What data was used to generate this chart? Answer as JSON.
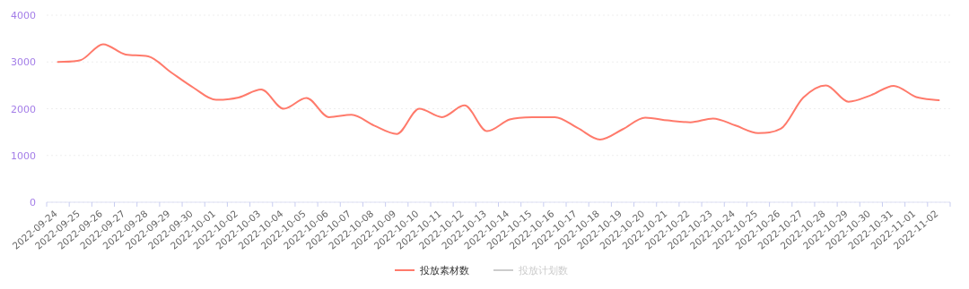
{
  "chart_data": {
    "type": "line",
    "categories": [
      "2022-09-24",
      "2022-09-25",
      "2022-09-26",
      "2022-09-27",
      "2022-09-28",
      "2022-09-29",
      "2022-09-30",
      "2022-10-01",
      "2022-10-02",
      "2022-10-03",
      "2022-10-04",
      "2022-10-05",
      "2022-10-06",
      "2022-10-07",
      "2022-10-08",
      "2022-10-09",
      "2022-10-10",
      "2022-10-11",
      "2022-10-12",
      "2022-10-13",
      "2022-10-14",
      "2022-10-15",
      "2022-10-16",
      "2022-10-17",
      "2022-10-18",
      "2022-10-19",
      "2022-10-20",
      "2022-10-21",
      "2022-10-22",
      "2022-10-23",
      "2022-10-24",
      "2022-10-25",
      "2022-10-26",
      "2022-10-27",
      "2022-10-28",
      "2022-10-29",
      "2022-10-30",
      "2022-10-31",
      "2022-11-01",
      "2022-11-02"
    ],
    "series": [
      {
        "name": "投放素材数",
        "color": "#ff7a6b",
        "values": [
          3000,
          3040,
          3380,
          3160,
          3120,
          2780,
          2450,
          2190,
          2240,
          2410,
          2000,
          2230,
          1820,
          1870,
          1640,
          1460,
          2000,
          1820,
          2070,
          1520,
          1770,
          1820,
          1820,
          1590,
          1340,
          1560,
          1810,
          1750,
          1710,
          1790,
          1640,
          1480,
          1570,
          2240,
          2500,
          2150,
          2290,
          2490,
          2250,
          2180
        ]
      },
      {
        "name": "投放计划数",
        "color": "#cccccc",
        "values": [
          null,
          null,
          null,
          null,
          null,
          null,
          null,
          null,
          null,
          null,
          null,
          null,
          null,
          null,
          null,
          null,
          null,
          null,
          null,
          null,
          null,
          null,
          null,
          null,
          null,
          null,
          null,
          null,
          null,
          null,
          null,
          null,
          null,
          null,
          null,
          null,
          null,
          null,
          null,
          null
        ]
      }
    ],
    "ylim": [
      0,
      4000
    ],
    "yticks": [
      0,
      1000,
      2000,
      3000,
      4000
    ],
    "grid": "y",
    "legend": "bottom"
  }
}
